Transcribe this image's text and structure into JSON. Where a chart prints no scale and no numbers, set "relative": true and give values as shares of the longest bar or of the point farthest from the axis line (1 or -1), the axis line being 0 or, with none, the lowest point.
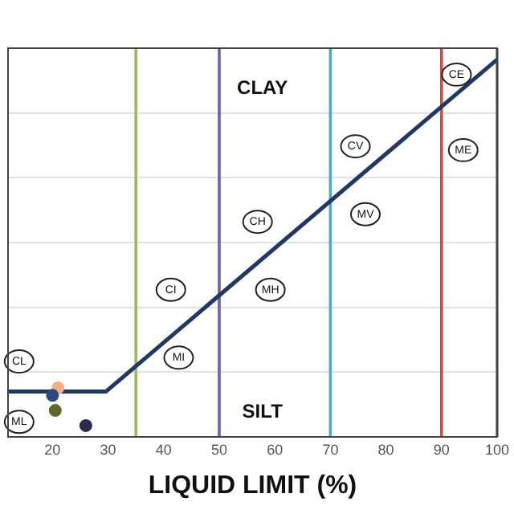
{
  "chart_data": {
    "type": "scatter",
    "relative": true,
    "xlabel": "LIQUID LIMIT (%)",
    "xlim": [
      12,
      100
    ],
    "xticks": [
      20,
      30,
      40,
      50,
      60,
      70,
      80,
      90,
      100
    ],
    "tick_labels": "x",
    "grid": "y",
    "legend": false,
    "marker": "circle",
    "series": [
      {
        "type": "line",
        "color": "#1f3864",
        "x": [
          12,
          29.6,
          100
        ],
        "values": [
          0.12,
          0.12,
          1
        ],
        "marker": "none"
      },
      {
        "color": "#2e4a7d",
        "x": [
          20
        ],
        "values": [
          0.11
        ]
      },
      {
        "color": "#f4b183",
        "x": [
          21
        ],
        "values": [
          0.13
        ]
      },
      {
        "color": "#5a6b2e",
        "x": [
          20.5
        ],
        "values": [
          0.07
        ]
      },
      {
        "color": "#2b2b4f",
        "x": [
          26
        ],
        "values": [
          0.03
        ]
      }
    ],
    "ref_lines": [
      {
        "axis": "x",
        "value": 35,
        "color": "#9bbb59"
      },
      {
        "axis": "x",
        "value": 50,
        "color": "#7060a8"
      },
      {
        "axis": "x",
        "value": 70,
        "color": "#4bacc6"
      },
      {
        "axis": "x",
        "value": 90,
        "color": "#c0504d"
      },
      {
        "axis": "x",
        "value": 100,
        "color": "#7f7f7f"
      }
    ],
    "annotations": [
      "CLAY",
      "SILT",
      {
        "text": "CL",
        "x": 14,
        "y": 0.2
      },
      {
        "text": "ML",
        "x": 14,
        "y": 0.04
      },
      {
        "text": "CI",
        "x": 41.3,
        "y": 0.39
      },
      {
        "text": "MI",
        "x": 42.7,
        "y": 0.21
      },
      {
        "text": "CH",
        "x": 56.9,
        "y": 0.57
      },
      {
        "text": "MH",
        "x": 59.2,
        "y": 0.39
      },
      {
        "text": "CV",
        "x": 74.5,
        "y": 0.77
      },
      {
        "text": "MV",
        "x": 76.3,
        "y": 0.59
      },
      {
        "text": "CE",
        "x": 92.7,
        "y": 0.96
      },
      {
        "text": "ME",
        "x": 93.9,
        "y": 0.76
      }
    ]
  }
}
